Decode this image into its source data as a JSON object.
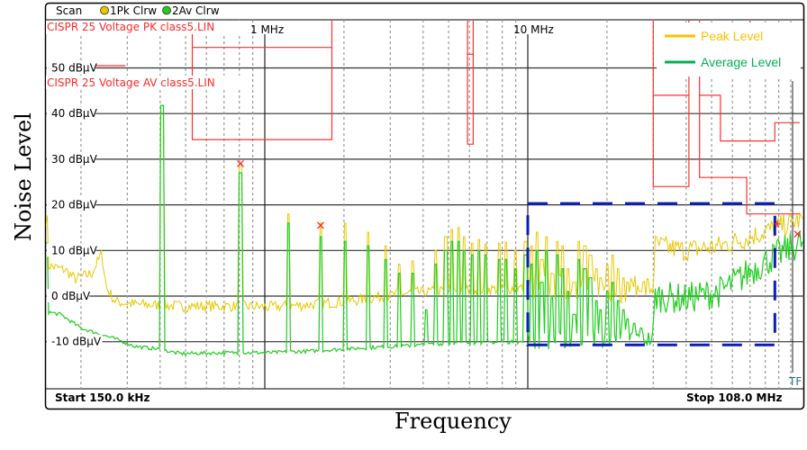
{
  "header": {
    "scan_label": "Scan",
    "trace1_label": "1Pk Clrw",
    "trace2_label": "2Av Clrw",
    "trace1_color": "#e6c800",
    "trace2_color": "#22cc22"
  },
  "limit_labels": {
    "pk": "CISPR 25 Voltage PK class5.LIN",
    "av": "CISPR 25 Voltage AV class5.LIN"
  },
  "footer": {
    "start": "Start 150.0 kHz",
    "stop": "Stop 108.0 MHz",
    "tf": "TF"
  },
  "axis_titles": {
    "y": "Noise Level",
    "x": "Frequency"
  },
  "legend": [
    {
      "label": "Peak Level",
      "color": "#FFC000"
    },
    {
      "label": "Average Level",
      "color": "#00B050"
    }
  ],
  "chart_data": {
    "type": "line",
    "x_scale": "log",
    "xlim_mhz": [
      0.15,
      108
    ],
    "ylim_dbuv": [
      -20,
      60
    ],
    "grid": true,
    "legend_position": "top-right",
    "y_ticks": [
      {
        "v": 50,
        "label": "50 dBµV"
      },
      {
        "v": 40,
        "label": "40 dBµV"
      },
      {
        "v": 30,
        "label": "30 dBµV"
      },
      {
        "v": 20,
        "label": "20 dBµV"
      },
      {
        "v": 10,
        "label": "10 dBµV"
      },
      {
        "v": 0,
        "label": "0 dBµV"
      },
      {
        "v": -10,
        "label": "-10 dBµV"
      }
    ],
    "x_ticks": [
      {
        "v": 1,
        "label": "1 MHz"
      },
      {
        "v": 10,
        "label": "10 MHz"
      }
    ],
    "series": [
      {
        "name": "Peak Level",
        "color": "#e6c800",
        "baseline": [
          [
            0.15,
            6.7
          ],
          [
            0.175,
            5.7
          ],
          [
            0.19,
            3.7
          ],
          [
            0.22,
            5
          ],
          [
            0.24,
            9.3
          ],
          [
            0.25,
            1.8
          ],
          [
            0.27,
            -1.2
          ],
          [
            0.32,
            -1.8
          ],
          [
            0.48,
            -2.2
          ],
          [
            0.77,
            -2.2
          ],
          [
            1.05,
            -2.4
          ],
          [
            1.55,
            -1.8
          ],
          [
            2.31,
            -0.8
          ],
          [
            3.4,
            0.6
          ],
          [
            5.08,
            1.2
          ],
          [
            10,
            1.8
          ],
          [
            15,
            2.2
          ],
          [
            24.5,
            1.4
          ],
          [
            29.9,
            1.8
          ],
          [
            30.5,
            11.2
          ],
          [
            39.4,
            10
          ],
          [
            54.1,
            11
          ],
          [
            70,
            13
          ],
          [
            88,
            15
          ],
          [
            108,
            16.6
          ]
        ]
      },
      {
        "name": "Average Level",
        "color": "#22cc22",
        "baseline": [
          [
            0.15,
            -3.5
          ],
          [
            0.167,
            -4
          ],
          [
            0.2,
            -7
          ],
          [
            0.274,
            -9.5
          ],
          [
            0.321,
            -11
          ],
          [
            0.391,
            -11.6
          ],
          [
            0.476,
            -12.6
          ],
          [
            0.765,
            -12.4
          ],
          [
            1.05,
            -12.4
          ],
          [
            1.55,
            -12
          ],
          [
            2.31,
            -11.4
          ],
          [
            3.7,
            -10.8
          ],
          [
            5.08,
            -10.3
          ],
          [
            10,
            -10
          ],
          [
            24.5,
            -9
          ],
          [
            29.9,
            -9.5
          ],
          [
            30.5,
            0
          ],
          [
            39.4,
            -0.6
          ],
          [
            54.1,
            1
          ],
          [
            80.3,
            7.7
          ],
          [
            108,
            11.6
          ]
        ]
      }
    ],
    "spikes": [
      [
        0.407,
        41.8,
        41.8
      ],
      [
        0.808,
        27,
        29
      ],
      [
        1.23,
        16,
        18
      ],
      [
        1.63,
        13,
        16
      ],
      [
        2.02,
        12,
        16
      ],
      [
        2.46,
        11,
        14
      ],
      [
        2.88,
        8,
        11
      ],
      [
        3.26,
        5,
        7
      ],
      [
        3.64,
        5,
        7.7
      ],
      [
        4.1,
        -3,
        0
      ],
      [
        4.47,
        7,
        10
      ],
      [
        4.88,
        10,
        13
      ],
      [
        5.16,
        12,
        14.6
      ],
      [
        5.45,
        12,
        15
      ],
      [
        5.75,
        10,
        13
      ],
      [
        6.17,
        9,
        11.6
      ],
      [
        6.5,
        10,
        12.4
      ],
      [
        6.95,
        9,
        11.4
      ],
      [
        7.8,
        8,
        11.6
      ],
      [
        8.25,
        8,
        11.8
      ],
      [
        9.0,
        6,
        10
      ],
      [
        9.8,
        9,
        12
      ],
      [
        10.3,
        7,
        11
      ],
      [
        10.8,
        10,
        14
      ],
      [
        11.3,
        3,
        8
      ],
      [
        11.8,
        10,
        13
      ],
      [
        12.4,
        0,
        5
      ],
      [
        13,
        9,
        12
      ],
      [
        13.6,
        6,
        11
      ],
      [
        14.3,
        1,
        6
      ],
      [
        15,
        -4,
        3
      ],
      [
        15.7,
        8,
        12
      ],
      [
        16.5,
        6,
        11
      ],
      [
        17.3,
        4,
        9
      ],
      [
        18.2,
        -1,
        6
      ],
      [
        19,
        -3,
        4
      ],
      [
        20,
        1,
        7
      ],
      [
        21,
        3,
        9
      ],
      [
        22,
        -1,
        6
      ],
      [
        23,
        -3,
        4
      ],
      [
        24,
        -5,
        3
      ],
      [
        25.5,
        -6,
        2
      ],
      [
        27,
        -7,
        1
      ]
    ],
    "markers": [
      {
        "type": "x",
        "f": 0.808,
        "v": 29
      },
      {
        "type": "x",
        "f": 1.63,
        "v": 15.5
      },
      {
        "type": "+",
        "f": 89,
        "v": 15.8
      },
      {
        "type": "x",
        "f": 106,
        "v": 13.6
      }
    ],
    "limit_lines_pk": [
      [
        [
          0.15,
          50.5
        ],
        [
          0.295,
          50.5
        ]
      ],
      [
        [
          0.53,
          70
        ],
        [
          0.53,
          54.5
        ],
        [
          1.8,
          54.5
        ],
        [
          1.8,
          70
        ]
      ],
      [
        [
          5.9,
          70
        ],
        [
          5.9,
          53
        ],
        [
          6.2,
          53
        ],
        [
          6.2,
          70
        ]
      ],
      [
        [
          30,
          70
        ],
        [
          30,
          44
        ],
        [
          41,
          44
        ],
        [
          41,
          70
        ]
      ],
      [
        [
          70,
          70
        ],
        [
          70,
          60
        ]
      ]
    ],
    "limit_lines_av": [
      [
        [
          0.53,
          54.5
        ],
        [
          0.53,
          34.3
        ],
        [
          1.8,
          34.3
        ],
        [
          1.8,
          54.5
        ]
      ],
      [
        [
          5.9,
          53
        ],
        [
          5.9,
          33.3
        ],
        [
          6.2,
          33.3
        ],
        [
          6.2,
          53
        ]
      ],
      [
        [
          30,
          44
        ],
        [
          30,
          24
        ],
        [
          41,
          24
        ],
        [
          41,
          44
        ]
      ],
      [
        [
          41,
          70
        ],
        [
          41,
          50
        ]
      ],
      [
        [
          45,
          70
        ],
        [
          45,
          26
        ],
        [
          68,
          26
        ],
        [
          68,
          18
        ],
        [
          108,
          18
        ]
      ],
      [
        [
          45,
          44
        ],
        [
          54,
          44
        ],
        [
          54,
          34
        ],
        [
          87,
          34
        ],
        [
          87,
          38
        ],
        [
          108,
          38
        ]
      ]
    ],
    "highlight_box": {
      "f_from": 10,
      "f_to": 87,
      "v_from": -10.7,
      "v_to": 20.3,
      "color": "#0a1fb4"
    }
  }
}
